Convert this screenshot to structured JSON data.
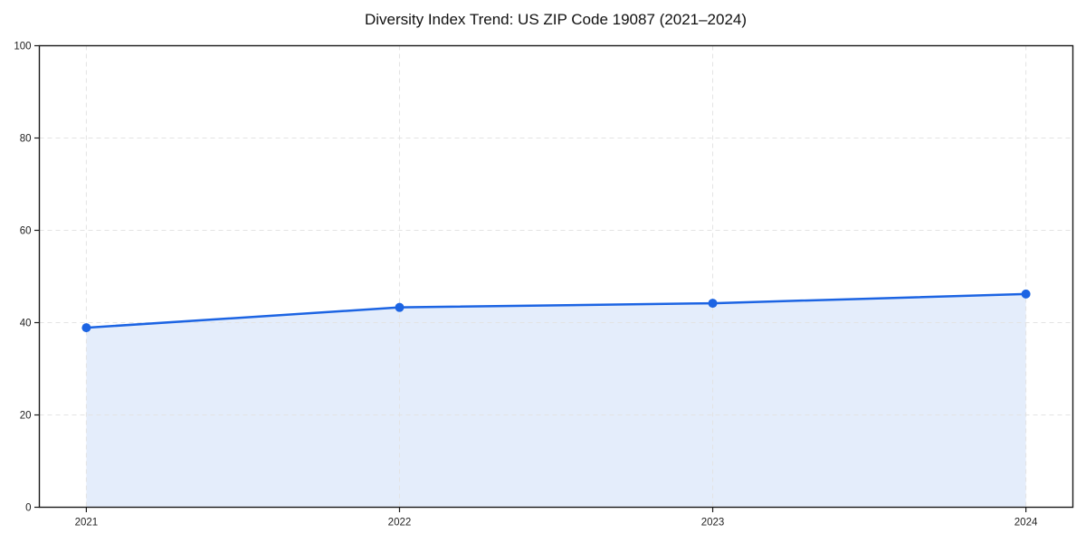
{
  "chart_data": {
    "type": "area",
    "title": "Diversity Index Trend: US ZIP Code 19087 (2021–2024)",
    "x": [
      2021,
      2022,
      2023,
      2024
    ],
    "categories": [
      "2021",
      "2022",
      "2023",
      "2024"
    ],
    "series": [
      {
        "name": "Diversity Index",
        "values": [
          38.9,
          43.3,
          44.2,
          46.2
        ]
      }
    ],
    "xlabel": "",
    "ylabel": "",
    "ylim": [
      0,
      100
    ],
    "yticks": [
      0,
      20,
      40,
      60,
      80,
      100
    ],
    "ytick_labels": [
      "0",
      "20",
      "40",
      "60",
      "80",
      "100"
    ],
    "grid": true,
    "grid_style": "dashed",
    "legend_position": "none",
    "marker": "circle",
    "colors": {
      "line": "#1c64e3",
      "marker": "#1c64e3",
      "area_fill": "#e4edfb",
      "gridline": "#e3e3e3",
      "axis": "#1a1a1a",
      "tick_label": "#222222",
      "background": "#ffffff"
    }
  }
}
